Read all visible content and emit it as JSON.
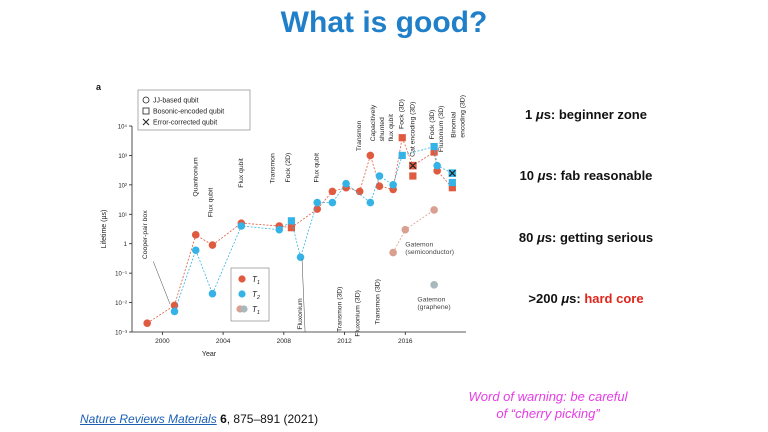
{
  "slide_title": "What is good?",
  "chart_data": {
    "type": "scatter",
    "panel_label": "a",
    "xlabel": "Year",
    "ylabel": "Lifetime (µs)",
    "xlim": [
      1998,
      2020
    ],
    "ylim_log10": [
      -3,
      4
    ],
    "xticks": [
      2000,
      2004,
      2008,
      2012,
      2016
    ],
    "yticks": [
      "10⁻³",
      "10⁻²",
      "10⁻¹",
      "1",
      "10¹",
      "10²",
      "10³",
      "10⁴"
    ],
    "legend_top": [
      {
        "marker": "circle",
        "label": "JJ-based qubit"
      },
      {
        "marker": "square",
        "label": "Bosonic-encoded qubit"
      },
      {
        "marker": "cross",
        "label": "Error-corrected qubit"
      }
    ],
    "legend_series": [
      {
        "symbol": "T",
        "sub": "1",
        "color": "#e05a3f"
      },
      {
        "symbol": "T",
        "sub": "2",
        "color": "#35b3e6"
      },
      {
        "symbol": "T",
        "sub": "1",
        "color": "#d9a090"
      }
    ],
    "colors": {
      "t1": "#e05a3f",
      "t2": "#35b3e6",
      "faded_t1": "#d9a090",
      "graphene": "#a9b8bc"
    },
    "series": [
      {
        "name": "T1",
        "style": "t1",
        "points": [
          {
            "x": 1999,
            "y": 0.002,
            "m": "circle"
          },
          {
            "x": 2000.8,
            "y": 0.008,
            "m": "circle"
          },
          {
            "x": 2002.2,
            "y": 2,
            "m": "circle"
          },
          {
            "x": 2003.3,
            "y": 0.9,
            "m": "circle"
          },
          {
            "x": 2005.2,
            "y": 5,
            "m": "circle"
          },
          {
            "x": 2007.7,
            "y": 4,
            "m": "circle"
          },
          {
            "x": 2008.5,
            "y": 3.5,
            "m": "square"
          },
          {
            "x": 2010.2,
            "y": 15,
            "m": "circle"
          },
          {
            "x": 2011.2,
            "y": 60,
            "m": "circle"
          },
          {
            "x": 2012.1,
            "y": 80,
            "m": "circle"
          },
          {
            "x": 2013,
            "y": 60,
            "m": "circle"
          },
          {
            "x": 2013.7,
            "y": 1000,
            "m": "circle"
          },
          {
            "x": 2014.3,
            "y": 90,
            "m": "circle"
          },
          {
            "x": 2015.2,
            "y": 70,
            "m": "circle"
          },
          {
            "x": 2015.8,
            "y": 4000,
            "m": "square"
          },
          {
            "x": 2016.5,
            "y": 450,
            "m": "cross"
          },
          {
            "x": 2016.5,
            "y": 200,
            "m": "square"
          },
          {
            "x": 2017.9,
            "y": 1300,
            "m": "square"
          },
          {
            "x": 2018.1,
            "y": 300,
            "m": "circle"
          },
          {
            "x": 2019.1,
            "y": 80,
            "m": "square"
          }
        ]
      },
      {
        "name": "T2",
        "style": "t2",
        "points": [
          {
            "x": 2000.8,
            "y": 0.005,
            "m": "circle"
          },
          {
            "x": 2002.2,
            "y": 0.6,
            "m": "circle"
          },
          {
            "x": 2003.3,
            "y": 0.02,
            "m": "circle"
          },
          {
            "x": 2005.2,
            "y": 4,
            "m": "circle"
          },
          {
            "x": 2007.7,
            "y": 3,
            "m": "circle"
          },
          {
            "x": 2008.5,
            "y": 6,
            "m": "square"
          },
          {
            "x": 2009.1,
            "y": 0.35,
            "m": "circle"
          },
          {
            "x": 2010.2,
            "y": 25,
            "m": "circle"
          },
          {
            "x": 2011.2,
            "y": 25,
            "m": "circle"
          },
          {
            "x": 2012.1,
            "y": 110,
            "m": "circle"
          },
          {
            "x": 2013.7,
            "y": 25,
            "m": "circle"
          },
          {
            "x": 2014.3,
            "y": 200,
            "m": "circle"
          },
          {
            "x": 2015.2,
            "y": 100,
            "m": "circle"
          },
          {
            "x": 2015.8,
            "y": 1000,
            "m": "square"
          },
          {
            "x": 2017.9,
            "y": 2000,
            "m": "square"
          },
          {
            "x": 2018.1,
            "y": 450,
            "m": "circle"
          },
          {
            "x": 2019.1,
            "y": 250,
            "m": "cross"
          },
          {
            "x": 2019.1,
            "y": 120,
            "m": "square"
          }
        ]
      },
      {
        "name": "Gatemon (semiconductor) T1",
        "style": "faded_t1",
        "points": [
          {
            "x": 2015.2,
            "y": 0.5,
            "m": "circle"
          },
          {
            "x": 2016,
            "y": 3,
            "m": "circle"
          },
          {
            "x": 2017.9,
            "y": 14,
            "m": "circle"
          }
        ]
      },
      {
        "name": "Gatemon (graphene)",
        "style": "graphene",
        "points": [
          {
            "x": 2017.9,
            "y": 0.04,
            "m": "circle"
          }
        ]
      }
    ],
    "annotations": [
      {
        "text": "Cooper-pair box",
        "lx": 1999.0,
        "ly": 0.3,
        "rotate": true
      },
      {
        "text": "Quantronium",
        "lx": 2002.3,
        "ly": 40,
        "rotate": true
      },
      {
        "text": "Flux qubit",
        "lx": 2003.3,
        "ly": 8,
        "rotate": true
      },
      {
        "text": "Flux qubit",
        "lx": 2005.3,
        "ly": 80,
        "rotate": true
      },
      {
        "text": "Transmon",
        "lx": 2007.4,
        "ly": 110,
        "rotate": true
      },
      {
        "text": "Fock (2D)",
        "lx": 2008.4,
        "ly": 120,
        "rotate": true
      },
      {
        "text": "Fluxonium",
        "lx": 2009.2,
        "ly": 0.0012,
        "rotate": true,
        "top_anchor": true
      },
      {
        "text": "Flux qubit",
        "lx": 2010.3,
        "ly": 120,
        "rotate": true
      },
      {
        "text": "Transmon (3D)",
        "lx": 2011.8,
        "ly": 0.001,
        "rotate": true,
        "top_anchor": true
      },
      {
        "text": "Transmon",
        "lx": 2013.1,
        "ly": 1400,
        "rotate": true
      },
      {
        "text": "Fluxonium (3D)",
        "lx": 2013.0,
        "ly": 0.0007,
        "rotate": true,
        "top_anchor": true
      },
      {
        "text": "Capacitively",
        "lx": 2014.0,
        "ly": 3000,
        "rotate": true
      },
      {
        "text": "shunted",
        "lx": 2014.6,
        "ly": 3000,
        "rotate": true
      },
      {
        "text": "flux qubit",
        "lx": 2015.2,
        "ly": 3000,
        "rotate": true
      },
      {
        "text": "Transmon (3D)",
        "lx": 2014.3,
        "ly": 0.0018,
        "rotate": true,
        "top_anchor": true
      },
      {
        "text": "Fock (3D)",
        "lx": 2015.9,
        "ly": 8000,
        "rotate": true
      },
      {
        "text": "Cat encoding (3D)",
        "lx": 2016.6,
        "ly": 900,
        "rotate": true
      },
      {
        "text": "Fock (3D)",
        "lx": 2017.9,
        "ly": 3500,
        "rotate": true
      },
      {
        "text": "Fluxonium (3D)",
        "lx": 2018.5,
        "ly": 1300,
        "rotate": true
      },
      {
        "text": "Binomial",
        "lx": 2019.3,
        "ly": 4000,
        "rotate": true
      },
      {
        "text": "encoding (3D)",
        "lx": 2019.9,
        "ly": 4000,
        "rotate": true
      }
    ],
    "gatemon_labels": [
      {
        "text": "Gatemon",
        "x": 2016.0,
        "y": 0.8
      },
      {
        "text": "(semiconductor)",
        "x": 2016.0,
        "y": 0.45
      },
      {
        "text": "Gatemon",
        "x": 2016.8,
        "y": 0.011
      },
      {
        "text": "(graphene)",
        "x": 2016.8,
        "y": 0.006
      }
    ]
  },
  "levels": [
    {
      "prefix": "1 ",
      "mu": "μ",
      "rest": "s: beginner zone",
      "emph": ""
    },
    {
      "prefix": "10 ",
      "mu": "μ",
      "rest": "s: fab reasonable",
      "emph": ""
    },
    {
      "prefix": "80 ",
      "mu": "μ",
      "rest": "s: getting serious",
      "emph": ""
    },
    {
      "prefix": ">200 ",
      "mu": "μ",
      "rest": "s: ",
      "emph": "hard core"
    }
  ],
  "warning": {
    "line1": "Word of warning: be careful",
    "line2": "of “cherry picking”"
  },
  "citation": {
    "journal": "Nature Reviews Materials",
    "volume": "6",
    "pages": ", 875–891 (2021)"
  }
}
